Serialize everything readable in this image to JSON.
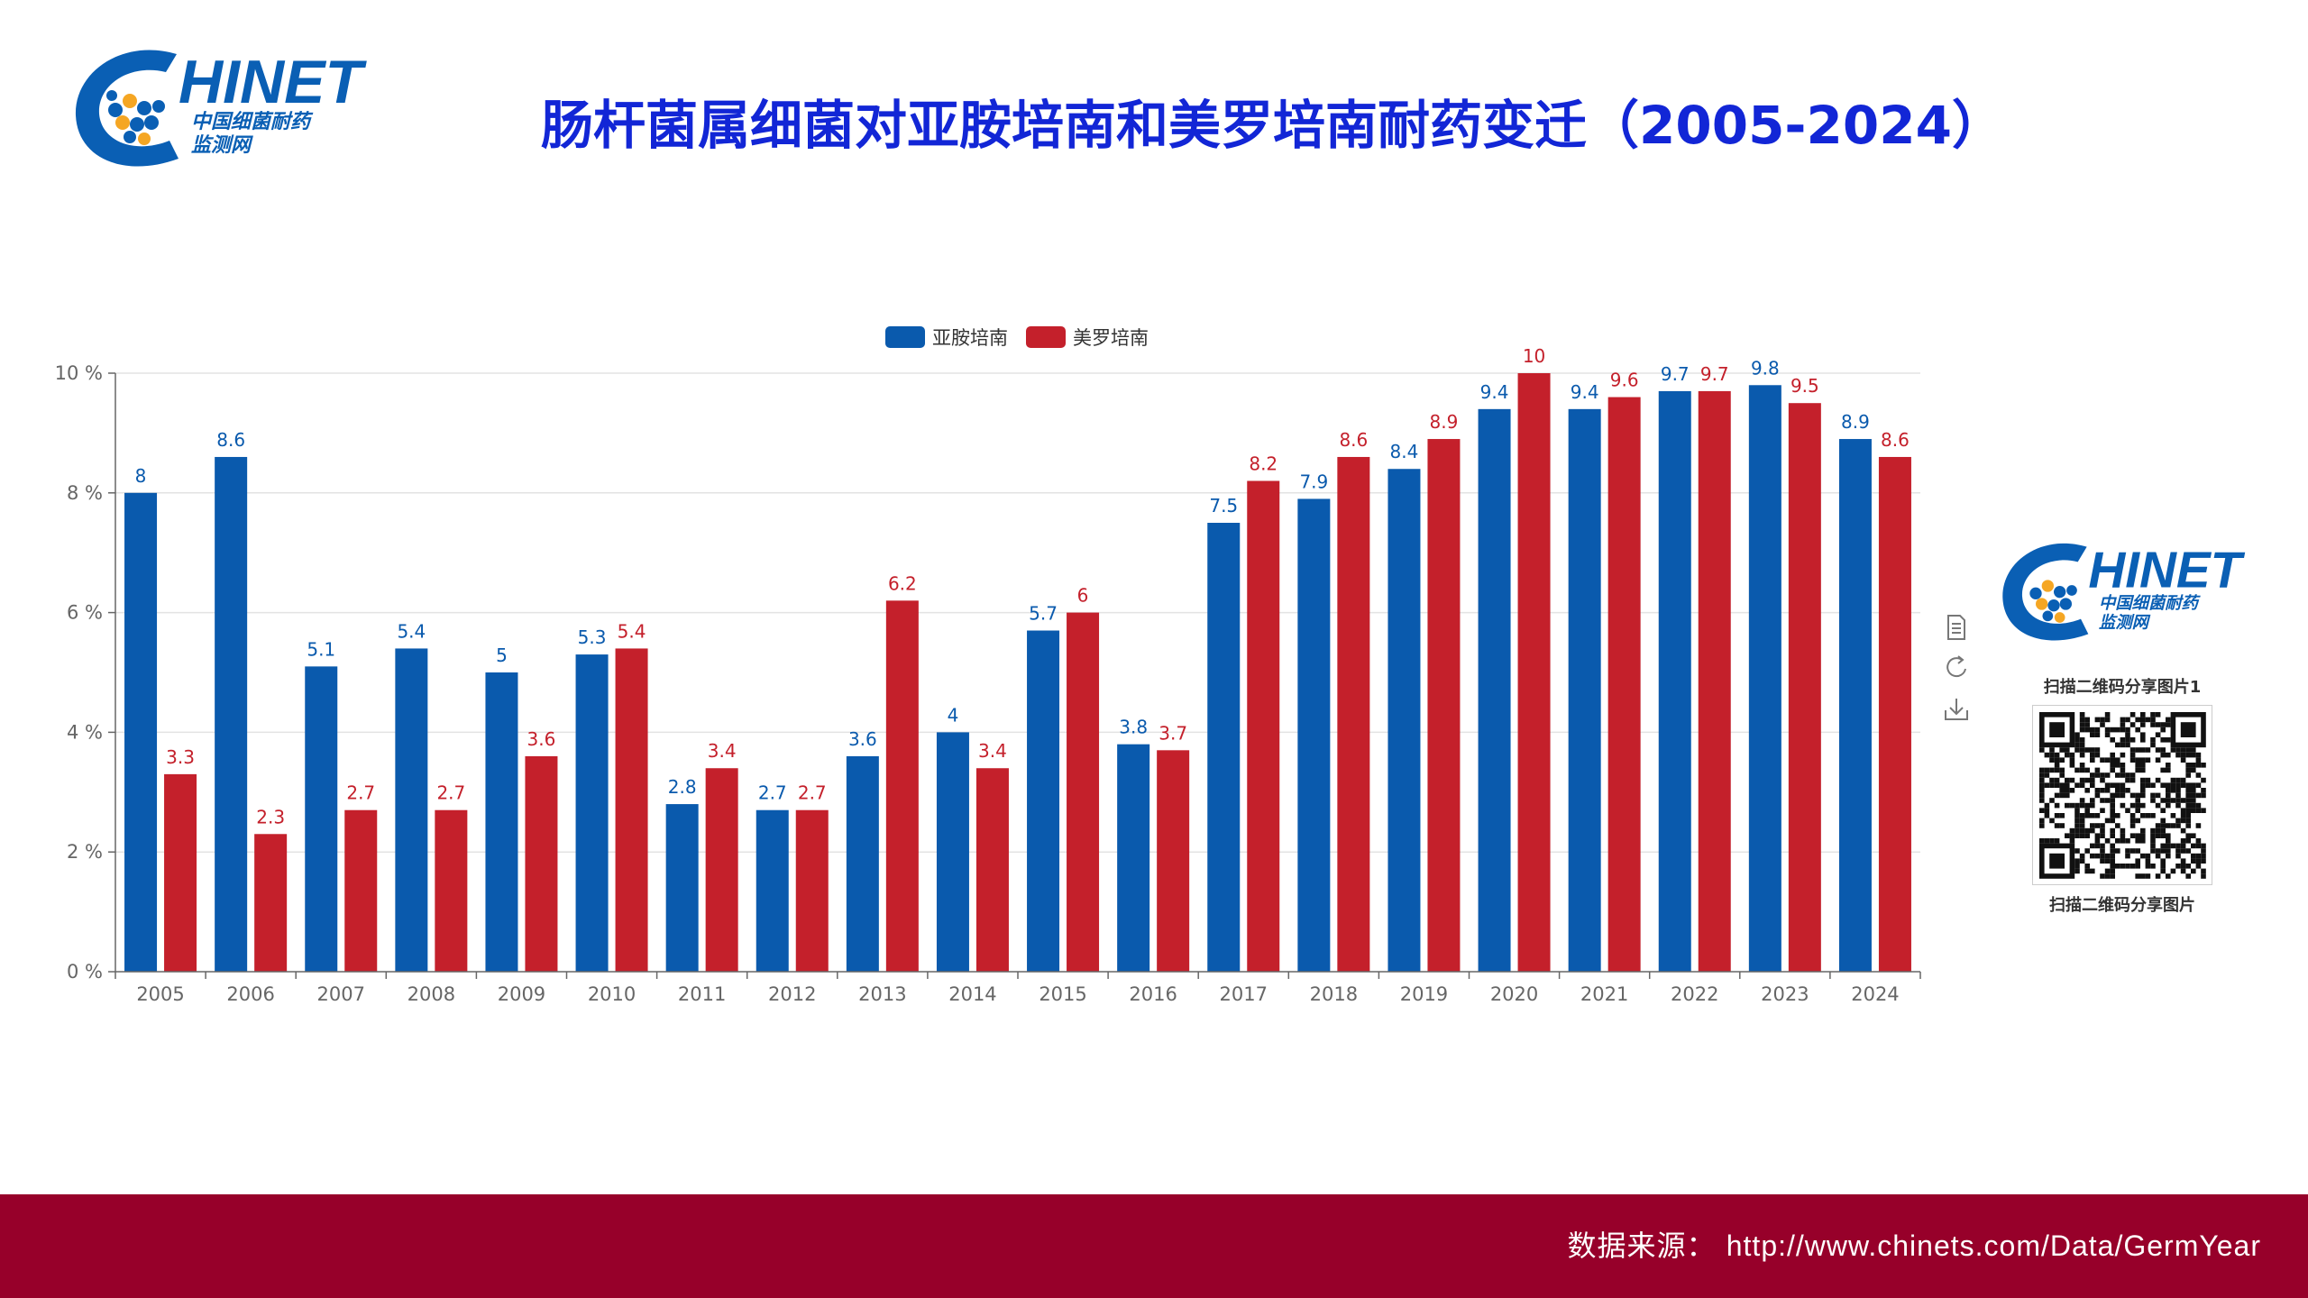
{
  "header": {
    "logo_word": "HINET",
    "logo_sub1": "中国细菌耐药",
    "logo_sub2": "监测网",
    "title": "肠杆菌属细菌对亚胺培南和美罗培南耐药变迁（2005-2024）"
  },
  "chart_data": {
    "type": "bar",
    "title": "肠杆菌属细菌对亚胺培南和美罗培南耐药变迁（2005-2024）",
    "xlabel": "",
    "ylabel": "",
    "ylim": [
      0,
      10
    ],
    "yticks": [
      "0 %",
      "2 %",
      "4 %",
      "6 %",
      "8 %",
      "10 %"
    ],
    "grid": true,
    "legend_position": "top-center",
    "categories": [
      "2005",
      "2006",
      "2007",
      "2008",
      "2009",
      "2010",
      "2011",
      "2012",
      "2013",
      "2014",
      "2015",
      "2016",
      "2017",
      "2018",
      "2019",
      "2020",
      "2021",
      "2022",
      "2023",
      "2024"
    ],
    "series": [
      {
        "name": "亚胺培南",
        "color": "#0a5aad",
        "values": [
          8,
          8.6,
          5.1,
          5.4,
          5,
          5.3,
          2.8,
          2.7,
          3.6,
          4,
          5.7,
          3.8,
          7.5,
          7.9,
          8.4,
          9.4,
          9.4,
          9.7,
          9.8,
          8.9
        ],
        "labels": [
          "8",
          "8.6",
          "5.1",
          "5.4",
          "5",
          "5.3",
          "2.8",
          "2.7",
          "3.6",
          "4",
          "5.7",
          "3.8",
          "7.5",
          "7.9",
          "8.4",
          "9.4",
          "9.4",
          "9.7",
          "9.8",
          "8.9"
        ]
      },
      {
        "name": "美罗培南",
        "color": "#c4202b",
        "values": [
          3.3,
          2.3,
          2.7,
          2.7,
          3.6,
          5.4,
          3.4,
          2.7,
          6.2,
          3.4,
          6,
          3.7,
          8.2,
          8.6,
          8.9,
          10,
          9.6,
          9.7,
          9.5,
          8.6
        ],
        "labels": [
          "3.3",
          "2.3",
          "2.7",
          "2.7",
          "3.6",
          "5.4",
          "3.4",
          "2.7",
          "6.2",
          "3.4",
          "6",
          "3.7",
          "8.2",
          "8.6",
          "8.9",
          "10",
          "9.6",
          "9.7",
          "9.5",
          "8.6"
        ]
      }
    ]
  },
  "toolbox": {
    "icons": [
      "data-view-icon",
      "restore-icon",
      "save-image-icon"
    ]
  },
  "share": {
    "caption_top": "扫描二维码分享图片1",
    "caption_bottom": "扫描二维码分享图片"
  },
  "footer": {
    "source_label": "数据来源：",
    "source_url": "http://www.chinets.com/Data/GermYear"
  },
  "colors": {
    "title": "#1226d6",
    "footer_bg": "#97002a",
    "brand_blue": "#0a5fb4"
  }
}
